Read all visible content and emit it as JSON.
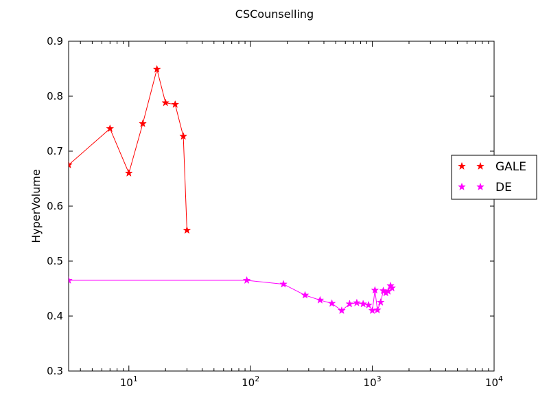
{
  "chart_data": {
    "type": "line",
    "title": "CSCounselling",
    "xlabel": "",
    "ylabel": "HyperVolume",
    "x_scale": "log",
    "xlim": [
      3.2,
      10000
    ],
    "ylim": [
      0.3,
      0.9
    ],
    "x_ticks": [
      {
        "value": 10,
        "base": "10",
        "exp": "1"
      },
      {
        "value": 100,
        "base": "10",
        "exp": "2"
      },
      {
        "value": 1000,
        "base": "10",
        "exp": "3"
      },
      {
        "value": 10000,
        "base": "10",
        "exp": "4"
      }
    ],
    "y_ticks": [
      0.3,
      0.4,
      0.5,
      0.6,
      0.7,
      0.8,
      0.9
    ],
    "y_tick_labels": [
      "0.3",
      "0.4",
      "0.5",
      "0.6",
      "0.7",
      "0.8",
      "0.9"
    ],
    "grid": false,
    "legend_position": "right",
    "series": [
      {
        "name": "GALE",
        "color": "#ff0000",
        "marker": "star",
        "x": [
          3.2,
          7,
          10,
          13,
          17,
          20,
          24,
          28,
          30
        ],
        "y": [
          0.675,
          0.741,
          0.66,
          0.75,
          0.849,
          0.788,
          0.785,
          0.727,
          0.556
        ]
      },
      {
        "name": "DE",
        "color": "#ff00ff",
        "marker": "star",
        "x": [
          3.2,
          93,
          186,
          280,
          372,
          465,
          560,
          650,
          745,
          840,
          930,
          1000,
          1050,
          1100,
          1170,
          1230,
          1290,
          1350,
          1410,
          1450
        ],
        "y": [
          0.465,
          0.465,
          0.458,
          0.438,
          0.429,
          0.423,
          0.41,
          0.422,
          0.424,
          0.422,
          0.42,
          0.41,
          0.447,
          0.411,
          0.425,
          0.446,
          0.442,
          0.445,
          0.455,
          0.451
        ]
      }
    ]
  }
}
